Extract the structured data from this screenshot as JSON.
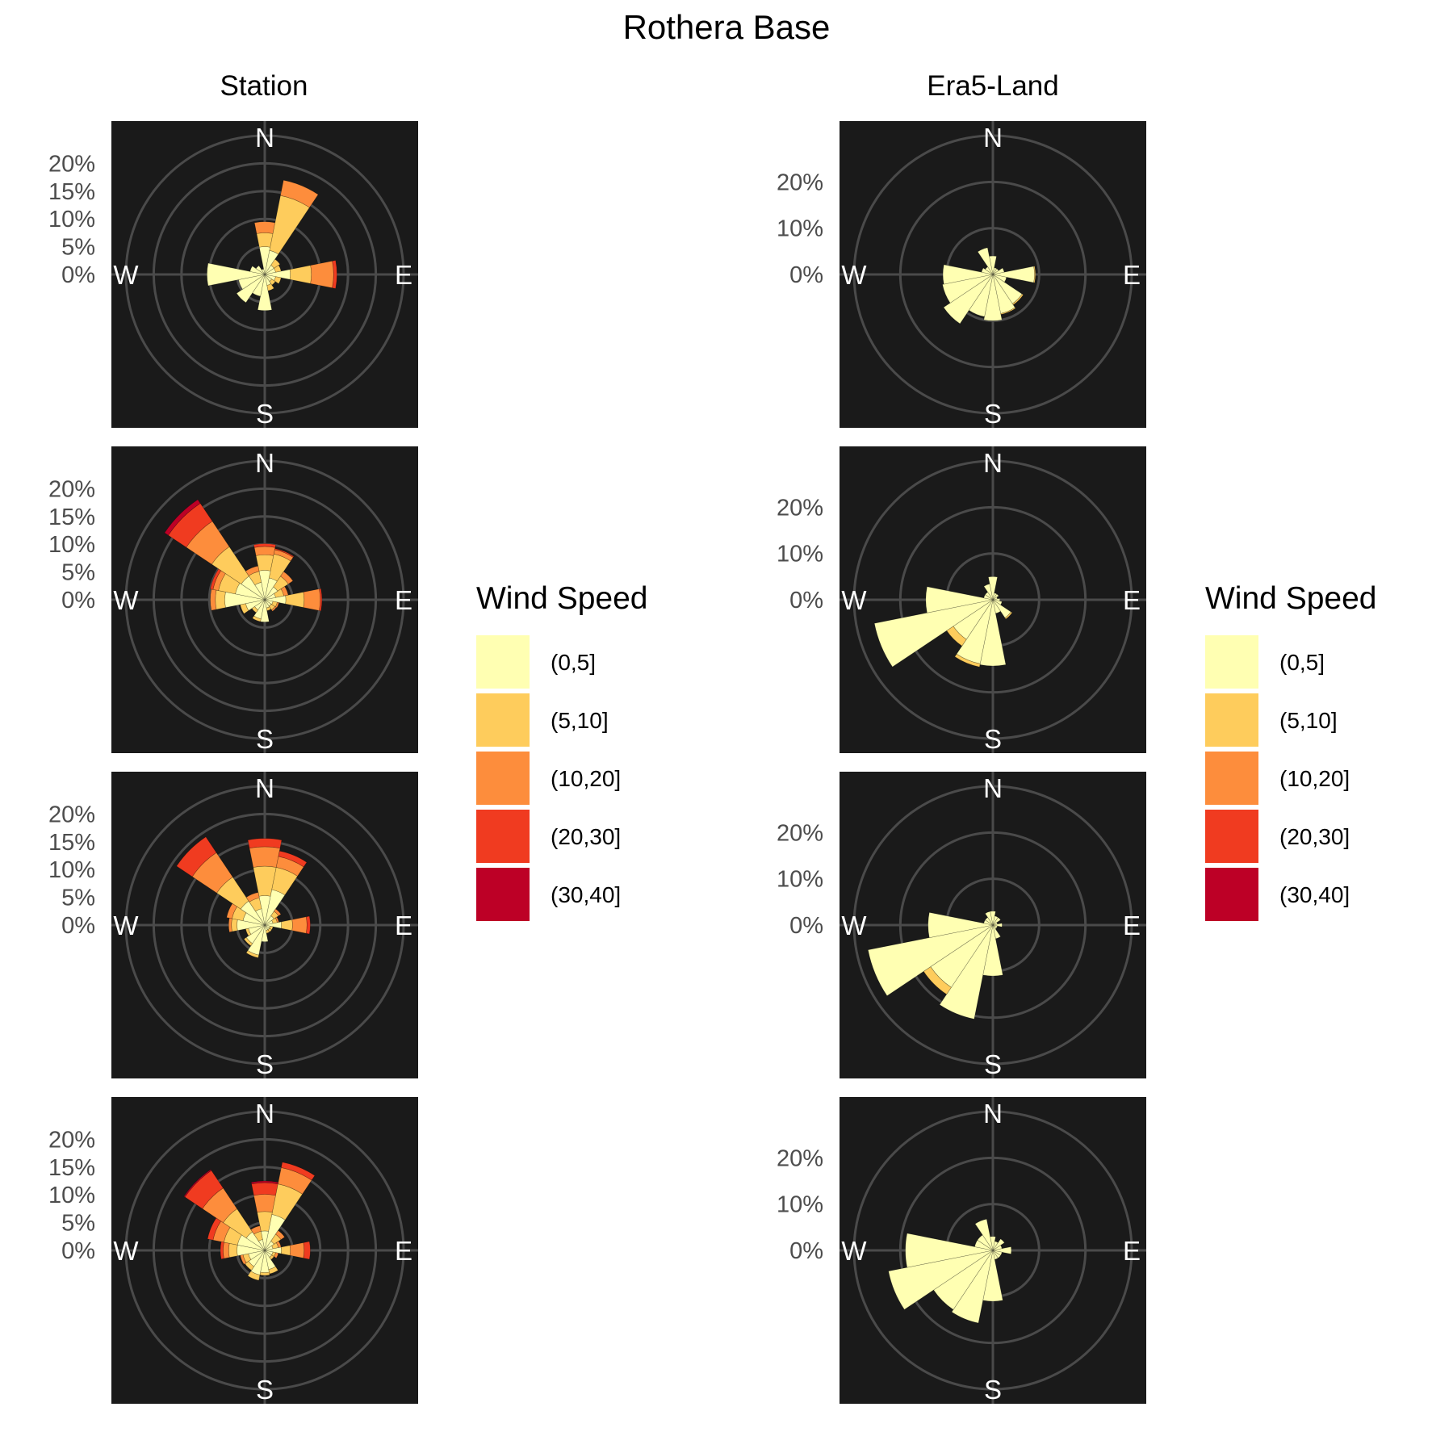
{
  "title": "Rothera Base",
  "colors": {
    "panel_bg": "#1a1a1a",
    "grid": "#4a4a4a",
    "compass_text": "#ffffff",
    "bin_edge": "#000000"
  },
  "chart_data": {
    "type": "wind-rose",
    "directions": [
      "N",
      "NNE",
      "NE",
      "ENE",
      "E",
      "ESE",
      "SE",
      "SSE",
      "S",
      "SSW",
      "SW",
      "WSW",
      "W",
      "WNW",
      "NW",
      "NNW"
    ],
    "compass_labels": [
      "N",
      "E",
      "S",
      "W"
    ],
    "speed_bins": [
      {
        "label": "(0,5]",
        "color": "#ffffb2"
      },
      {
        "label": "(5,10]",
        "color": "#fecc5c"
      },
      {
        "label": "(10,20]",
        "color": "#fd8d3c"
      },
      {
        "label": "(20,30]",
        "color": "#f03b20"
      },
      {
        "label": "(30,40]",
        "color": "#bd0026"
      }
    ],
    "legend_title": "Wind Speed",
    "columns": [
      {
        "title": "Station",
        "radial_ticks": [
          "0%",
          "5%",
          "10%",
          "15%",
          "20%"
        ],
        "tick_values": [
          0,
          5,
          10,
          15,
          20
        ],
        "r_outer": 25,
        "panels": [
          {
            "values": [
              [
                5,
                2.5,
                2,
                0,
                0
              ],
              [
                4.4,
                10.1,
                2.8,
                0,
                0
              ],
              [
                2,
                1.3,
                0,
                0,
                0
              ],
              [
                2,
                1,
                0,
                0,
                0
              ],
              [
                4.6,
                3.8,
                4,
                0.6,
                0
              ],
              [
                2,
                1,
                0,
                0,
                0
              ],
              [
                1.5,
                0.8,
                0,
                0,
                0
              ],
              [
                2,
                1,
                0,
                0,
                0
              ],
              [
                6.5,
                0,
                0,
                0,
                0
              ],
              [
                4,
                0,
                0,
                0,
                0
              ],
              [
                6.1,
                0,
                0,
                0,
                0
              ],
              [
                4.8,
                0,
                0,
                0,
                0
              ],
              [
                10.4,
                0,
                0,
                0,
                0
              ],
              [
                2.7,
                0,
                0,
                0,
                0
              ],
              [
                1.9,
                0,
                0,
                0,
                0
              ],
              [
                1,
                0,
                0,
                0,
                0
              ]
            ]
          },
          {
            "values": [
              [
                5.3,
                2.8,
                1.5,
                0.5,
                0
              ],
              [
                4,
                4.4,
                0.8,
                0.2,
                0
              ],
              [
                2.8,
                2.3,
                1,
                0,
                0
              ],
              [
                2,
                1.5,
                0.8,
                0,
                0
              ],
              [
                3.8,
                3.3,
                2.9,
                0.3,
                0
              ],
              [
                1.5,
                0.8,
                0.3,
                0,
                0
              ],
              [
                1.4,
                0.8,
                0.3,
                0,
                0
              ],
              [
                1.5,
                0.5,
                0,
                0,
                0
              ],
              [
                4,
                0,
                0,
                0,
                0
              ],
              [
                3.5,
                0.5,
                0,
                0,
                0
              ],
              [
                2.2,
                0.6,
                0,
                0,
                0
              ],
              [
                3.5,
                1,
                0,
                0,
                0
              ],
              [
                7.2,
                1.7,
                0.9,
                0,
                0
              ],
              [
                5.4,
                3.1,
                1,
                0.5,
                0
              ],
              [
                5.1,
                6.4,
                5.5,
                3.9,
                0.8
              ],
              [
                3.2,
                2,
                1,
                0,
                0
              ]
            ]
          },
          {
            "values": [
              [
                5.3,
                5.3,
                3.5,
                1.5,
                0
              ],
              [
                6.5,
                4.1,
                2,
                1,
                0
              ],
              [
                2,
                1,
                0.5,
                0,
                0
              ],
              [
                1.5,
                0.8,
                0.3,
                0,
                0
              ],
              [
                3,
                2,
                2.6,
                0.6,
                0
              ],
              [
                1,
                0.5,
                0,
                0,
                0
              ],
              [
                1,
                0.5,
                0,
                0,
                0
              ],
              [
                1,
                0.5,
                0,
                0,
                0
              ],
              [
                3,
                0,
                0,
                0,
                0
              ],
              [
                5.5,
                0.5,
                0,
                0,
                0
              ],
              [
                4,
                0.5,
                0,
                0,
                0
              ],
              [
                3,
                0.5,
                0,
                0,
                0
              ],
              [
                5,
                1,
                0.5,
                0,
                0
              ],
              [
                4,
                2,
                1,
                0,
                0
              ],
              [
                5.2,
                5.2,
                5.3,
                3.4,
                0
              ],
              [
                3,
                2,
                1,
                0,
                0
              ]
            ]
          },
          {
            "values": [
              [
                3.5,
                3.5,
                3.1,
                2.1,
                0.3
              ],
              [
                6.6,
                5.6,
                3,
                1,
                0
              ],
              [
                2,
                1.5,
                0.8,
                0,
                0
              ],
              [
                1.5,
                1,
                0.5,
                0,
                0
              ],
              [
                3,
                1.6,
                2.5,
                1.1,
                0
              ],
              [
                1.5,
                0.5,
                0.5,
                0,
                0
              ],
              [
                1.5,
                0.5,
                0,
                0,
                0
              ],
              [
                3.5,
                0.8,
                0,
                0,
                0
              ],
              [
                4,
                0.5,
                0,
                0,
                0
              ],
              [
                4.5,
                1,
                0,
                0,
                0
              ],
              [
                3.5,
                0.8,
                0,
                0,
                0
              ],
              [
                3,
                1,
                0.5,
                0,
                0
              ],
              [
                5,
                1.5,
                1,
                0.5,
                0
              ],
              [
                5,
                2.5,
                2,
                1,
                0
              ],
              [
                4,
                5,
                4.5,
                3.8,
                0.2
              ],
              [
                2,
                1.5,
                1,
                0,
                0
              ]
            ]
          }
        ]
      },
      {
        "title": "Era5-Land",
        "radial_ticks": [
          "0%",
          "10%",
          "20%"
        ],
        "tick_values": [
          0,
          10,
          20
        ],
        "r_outer": 30,
        "panels": [
          {
            "values": [
              [
                4,
                0,
                0,
                0,
                0
              ],
              [
                1.5,
                0,
                0,
                0,
                0
              ],
              [
                1.5,
                0,
                0,
                0,
                0
              ],
              [
                2.5,
                0,
                0,
                0,
                0
              ],
              [
                9,
                0.2,
                0,
                0,
                0
              ],
              [
                3,
                0,
                0,
                0,
                0
              ],
              [
                7.6,
                0.3,
                0,
                0,
                0
              ],
              [
                8.6,
                0.2,
                0,
                0,
                0
              ],
              [
                10,
                0,
                0,
                0,
                0
              ],
              [
                9.3,
                0,
                0,
                0,
                0
              ],
              [
                12.8,
                0,
                0,
                0,
                0
              ],
              [
                11.1,
                0,
                0,
                0,
                0
              ],
              [
                10.8,
                0,
                0,
                0,
                0
              ],
              [
                2.5,
                0,
                0,
                0,
                0
              ],
              [
                2,
                0,
                0,
                0,
                0
              ],
              [
                5.9,
                0,
                0,
                0,
                0
              ]
            ]
          },
          {
            "values": [
              [
                5,
                0,
                0,
                0,
                0
              ],
              [
                1.5,
                0,
                0,
                0,
                0
              ],
              [
                1.5,
                0,
                0,
                0,
                0
              ],
              [
                1,
                0,
                0,
                0,
                0
              ],
              [
                1.5,
                0,
                0,
                0,
                0
              ],
              [
                2,
                0,
                0,
                0,
                0
              ],
              [
                4.7,
                0.3,
                0,
                0,
                0
              ],
              [
                3,
                0,
                0,
                0,
                0
              ],
              [
                14.3,
                0,
                0,
                0,
                0
              ],
              [
                14.1,
                0.7,
                0,
                0,
                0
              ],
              [
                10.3,
                1.7,
                0,
                0,
                0
              ],
              [
                26.1,
                0,
                0,
                0,
                0
              ],
              [
                14.5,
                0,
                0,
                0,
                0
              ],
              [
                2,
                0,
                0,
                0,
                0
              ],
              [
                2,
                0,
                0,
                0,
                0
              ],
              [
                3.5,
                0,
                0,
                0,
                0
              ]
            ]
          },
          {
            "values": [
              [
                3,
                0,
                0,
                0,
                0
              ],
              [
                2,
                0,
                0,
                0,
                0
              ],
              [
                2,
                0,
                0,
                0,
                0
              ],
              [
                1,
                0,
                0,
                0,
                0
              ],
              [
                2,
                0,
                0,
                0,
                0
              ],
              [
                1,
                0,
                0,
                0,
                0
              ],
              [
                1,
                0,
                0,
                0,
                0
              ],
              [
                3,
                0,
                0,
                0,
                0
              ],
              [
                11,
                0,
                0,
                0,
                0
              ],
              [
                20.7,
                0,
                0,
                0,
                0
              ],
              [
                16.2,
                1.8,
                0,
                0,
                0
              ],
              [
                27.5,
                0,
                0,
                0,
                0
              ],
              [
                14,
                0,
                0,
                0,
                0
              ],
              [
                2,
                0,
                0,
                0,
                0
              ],
              [
                2,
                0,
                0,
                0,
                0
              ],
              [
                3,
                0,
                0,
                0,
                0
              ]
            ]
          },
          {
            "values": [
              [
                3,
                0,
                0,
                0,
                0
              ],
              [
                2,
                0,
                0,
                0,
                0
              ],
              [
                3,
                0,
                0,
                0,
                0
              ],
              [
                2,
                0,
                0,
                0,
                0
              ],
              [
                4,
                0,
                0,
                0,
                0
              ],
              [
                2,
                0,
                0,
                0,
                0
              ],
              [
                2,
                0,
                0,
                0,
                0
              ],
              [
                2,
                0,
                0,
                0,
                0
              ],
              [
                11,
                0,
                0,
                0,
                0
              ],
              [
                16,
                0,
                0,
                0,
                0
              ],
              [
                15.4,
                0,
                0,
                0,
                0
              ],
              [
                23,
                0,
                0,
                0,
                0
              ],
              [
                18.9,
                0,
                0,
                0,
                0
              ],
              [
                4,
                0,
                0,
                0,
                0
              ],
              [
                4,
                0,
                0,
                0,
                0
              ],
              [
                6.9,
                0,
                0,
                0,
                0
              ]
            ]
          }
        ]
      }
    ]
  }
}
